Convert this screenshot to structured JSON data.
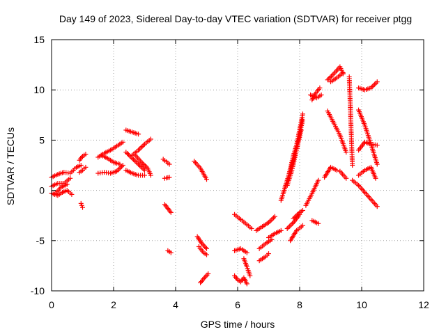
{
  "chart_data": {
    "type": "scatter",
    "title": "Day 149 of 2023, Sidereal Day-to-day VTEC variation (SDTVAR) for receiver ptgg",
    "xlabel": "GPS time / hours",
    "ylabel": "SDTVAR / TECUs",
    "xlim": [
      0,
      12
    ],
    "ylim": [
      -10,
      15
    ],
    "xticks": [
      "0",
      "2",
      "4",
      "6",
      "8",
      "10",
      "12"
    ],
    "yticks": [
      "-10",
      "-5",
      "0",
      "5",
      "10",
      "15"
    ],
    "grid": true,
    "marker": "+",
    "series_color": "#ff0000",
    "tracks": [
      {
        "x": [
          0.0,
          0.2,
          0.4,
          0.6,
          0.7
        ],
        "y": [
          1.3,
          1.6,
          1.8,
          1.7,
          2.0
        ]
      },
      {
        "x": [
          0.7,
          0.8,
          0.95
        ],
        "y": [
          2.0,
          2.3,
          2.5
        ]
      },
      {
        "x": [
          0.0,
          0.2,
          0.4,
          0.6
        ],
        "y": [
          0.4,
          0.7,
          0.7,
          1.2
        ]
      },
      {
        "x": [
          0.0,
          0.2,
          0.35,
          0.5,
          0.65
        ],
        "y": [
          -0.3,
          -0.5,
          -0.2,
          0.0,
          -0.4
        ]
      },
      {
        "x": [
          0.1,
          0.3,
          0.5
        ],
        "y": [
          -0.4,
          0.3,
          0.6
        ]
      },
      {
        "x": [
          0.9,
          1.0,
          1.1
        ],
        "y": [
          1.8,
          2.0,
          2.3
        ]
      },
      {
        "x": [
          0.9,
          1.0,
          1.1
        ],
        "y": [
          3.0,
          3.4,
          3.6
        ]
      },
      {
        "x": [
          0.95,
          1.0
        ],
        "y": [
          -1.3,
          -1.7
        ]
      },
      {
        "x": [
          1.5,
          1.7,
          1.9,
          2.1,
          2.3
        ],
        "y": [
          1.7,
          1.8,
          1.7,
          1.9,
          2.5
        ]
      },
      {
        "x": [
          1.5,
          1.7,
          1.9,
          2.1,
          2.3
        ],
        "y": [
          3.3,
          3.7,
          4.0,
          4.4,
          4.8
        ]
      },
      {
        "x": [
          1.6,
          1.8,
          2.0,
          2.2
        ],
        "y": [
          3.5,
          3.2,
          2.8,
          2.6
        ]
      },
      {
        "x": [
          2.4,
          2.6,
          2.8
        ],
        "y": [
          6.0,
          5.8,
          5.6
        ]
      },
      {
        "x": [
          2.4,
          2.6,
          2.8,
          3.0
        ],
        "y": [
          3.8,
          3.2,
          2.6,
          2.0
        ]
      },
      {
        "x": [
          2.4,
          2.6,
          2.8,
          3.0
        ],
        "y": [
          2.0,
          1.7,
          1.5,
          1.5
        ]
      },
      {
        "x": [
          2.6,
          2.8,
          3.0,
          3.2
        ],
        "y": [
          3.5,
          4.0,
          4.6,
          5.1
        ]
      },
      {
        "x": [
          2.7,
          2.9,
          3.1,
          3.2
        ],
        "y": [
          3.5,
          2.8,
          2.2,
          1.5
        ]
      },
      {
        "x": [
          3.6,
          3.8
        ],
        "y": [
          3.1,
          2.6
        ]
      },
      {
        "x": [
          3.65,
          3.8
        ],
        "y": [
          1.2,
          1.3
        ]
      },
      {
        "x": [
          3.65,
          3.85
        ],
        "y": [
          -1.4,
          -2.2
        ]
      },
      {
        "x": [
          3.75,
          3.85
        ],
        "y": [
          -6.0,
          -6.2
        ]
      },
      {
        "x": [
          4.6,
          4.8,
          5.0
        ],
        "y": [
          2.9,
          2.2,
          1.1
        ]
      },
      {
        "x": [
          4.7,
          4.85,
          5.0
        ],
        "y": [
          -4.6,
          -5.3,
          -5.8
        ]
      },
      {
        "x": [
          4.75,
          4.9,
          5.0
        ],
        "y": [
          -5.6,
          -6.2,
          -6.4
        ]
      },
      {
        "x": [
          4.8,
          4.9,
          5.05
        ],
        "y": [
          -9.2,
          -8.8,
          -8.3
        ]
      },
      {
        "x": [
          5.9,
          6.1,
          6.3,
          6.45
        ],
        "y": [
          -2.4,
          -2.9,
          -3.4,
          -3.8
        ]
      },
      {
        "x": [
          5.9,
          6.1,
          6.3
        ],
        "y": [
          -6.0,
          -5.8,
          -6.2
        ]
      },
      {
        "x": [
          5.9,
          6.0,
          6.1,
          6.2,
          6.3
        ],
        "y": [
          -8.5,
          -8.9,
          -9.1,
          -8.7,
          -9.3
        ]
      },
      {
        "x": [
          6.2,
          6.3,
          6.4
        ],
        "y": [
          -6.8,
          -7.6,
          -8.5
        ]
      },
      {
        "x": [
          6.6,
          6.8,
          7.0,
          7.2
        ],
        "y": [
          -4.0,
          -3.6,
          -3.2,
          -2.6
        ]
      },
      {
        "x": [
          6.7,
          6.9,
          7.1
        ],
        "y": [
          -5.8,
          -5.3,
          -4.9
        ]
      },
      {
        "x": [
          6.7,
          6.9,
          7.0
        ],
        "y": [
          -7.0,
          -6.6,
          -6.3
        ]
      },
      {
        "x": [
          7.0,
          7.2,
          7.4
        ],
        "y": [
          -4.7,
          -4.3,
          -4.0
        ]
      },
      {
        "x": [
          7.4,
          7.6,
          7.8,
          7.9,
          8.1
        ],
        "y": [
          -1.0,
          1.0,
          3.0,
          4.5,
          7.6
        ]
      },
      {
        "x": [
          7.5,
          7.65,
          7.8,
          7.95,
          8.1
        ],
        "y": [
          0.0,
          1.5,
          3.5,
          5.0,
          7.0
        ]
      },
      {
        "x": [
          7.6,
          7.75,
          7.9,
          8.05
        ],
        "y": [
          0.5,
          2.0,
          4.0,
          6.0
        ]
      },
      {
        "x": [
          7.6,
          7.8,
          8.0
        ],
        "y": [
          -3.8,
          -3.2,
          -2.4
        ]
      },
      {
        "x": [
          7.7,
          7.9,
          8.1
        ],
        "y": [
          -5.0,
          -4.0,
          -3.5
        ]
      },
      {
        "x": [
          7.8,
          8.0,
          8.1
        ],
        "y": [
          -2.8,
          -2.2,
          -2.0
        ]
      },
      {
        "x": [
          8.4,
          8.6
        ],
        "y": [
          -3.0,
          -3.3
        ]
      },
      {
        "x": [
          8.2,
          8.4,
          8.6
        ],
        "y": [
          -1.5,
          -0.3,
          1.0
        ]
      },
      {
        "x": [
          8.4,
          8.5,
          8.65
        ],
        "y": [
          9.0,
          9.6,
          10.2
        ]
      },
      {
        "x": [
          8.35,
          8.55,
          8.7
        ],
        "y": [
          9.5,
          9.2,
          9.5
        ]
      },
      {
        "x": [
          8.8,
          9.0,
          9.2
        ],
        "y": [
          1.3,
          2.3,
          2.0
        ]
      },
      {
        "x": [
          8.9,
          9.1,
          9.3,
          9.5
        ],
        "y": [
          7.9,
          6.7,
          5.5,
          3.8
        ]
      },
      {
        "x": [
          8.9,
          9.1,
          9.3,
          9.4
        ],
        "y": [
          11.0,
          11.6,
          12.3,
          11.6
        ]
      },
      {
        "x": [
          9.0,
          9.2,
          9.4
        ],
        "y": [
          10.8,
          11.2,
          11.7
        ]
      },
      {
        "x": [
          9.3,
          9.5
        ],
        "y": [
          1.9,
          1.2
        ]
      },
      {
        "x": [
          9.6,
          9.7
        ],
        "y": [
          11.3,
          2.5
        ]
      },
      {
        "x": [
          9.9,
          10.1,
          10.3,
          10.5
        ],
        "y": [
          8.0,
          6.5,
          4.6,
          2.6
        ]
      },
      {
        "x": [
          9.9,
          10.1,
          10.3,
          10.5
        ],
        "y": [
          10.2,
          10.0,
          10.2,
          10.8
        ]
      },
      {
        "x": [
          9.9,
          10.1,
          10.3,
          10.5
        ],
        "y": [
          4.0,
          4.8,
          4.6,
          4.5
        ]
      },
      {
        "x": [
          9.9,
          10.1,
          10.3,
          10.45
        ],
        "y": [
          1.5,
          2.0,
          2.3,
          1.2
        ]
      },
      {
        "x": [
          9.7,
          9.9,
          10.1,
          10.3,
          10.5
        ],
        "y": [
          1.0,
          0.5,
          -0.2,
          -0.9,
          -1.6
        ]
      }
    ]
  }
}
